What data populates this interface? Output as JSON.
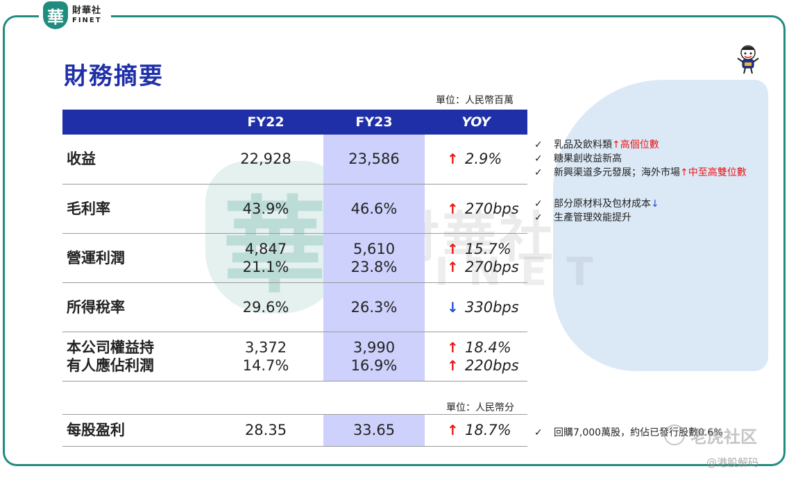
{
  "logo": {
    "glyph": "華",
    "cn": "財華社",
    "en": "FINET"
  },
  "title": "財務摘要",
  "unit_top": "單位：人民幣百萬",
  "unit_eps": "單位：人民幣分",
  "table": {
    "headers": [
      "",
      "FY22",
      "FY23",
      "YOY"
    ],
    "rows": [
      {
        "label": "收益",
        "fy22": "22,928",
        "fy23": "23,586",
        "yoy": [
          {
            "dir": "up",
            "arrow": "↑",
            "value": "2.9%"
          }
        ]
      },
      {
        "label": "毛利率",
        "fy22": "43.9%",
        "fy23": "46.6%",
        "yoy": [
          {
            "dir": "up",
            "arrow": "↑",
            "value": "270bps"
          }
        ]
      },
      {
        "label": "營運利潤",
        "fy22": [
          "4,847",
          "21.1%"
        ],
        "fy23": [
          "5,610",
          "23.8%"
        ],
        "yoy": [
          {
            "dir": "up",
            "arrow": "↑",
            "value": "15.7%"
          },
          {
            "dir": "up",
            "arrow": "↑",
            "value": "270bps"
          }
        ]
      },
      {
        "label": "所得稅率",
        "fy22": "29.6%",
        "fy23": "26.3%",
        "yoy": [
          {
            "dir": "down",
            "arrow": "↓",
            "value": "330bps"
          }
        ]
      },
      {
        "label": [
          "本公司權益持",
          "有人應佔利潤"
        ],
        "fy22": [
          "3,372",
          "14.7%"
        ],
        "fy23": [
          "3,990",
          "16.9%"
        ],
        "yoy": [
          {
            "dir": "up",
            "arrow": "↑",
            "value": "18.4%"
          },
          {
            "dir": "up",
            "arrow": "↑",
            "value": "220bps"
          }
        ]
      }
    ],
    "eps": {
      "label": "每股盈利",
      "fy22": "28.35",
      "fy23": "33.65",
      "yoy": {
        "dir": "up",
        "arrow": "↑",
        "value": "18.7%"
      }
    }
  },
  "notes": {
    "revenue": [
      {
        "text": "乳品及飲料類",
        "arrow": "↑",
        "highlight": "高個位數"
      },
      {
        "text": "糖果創收益新高",
        "arrow": "",
        "highlight": ""
      },
      {
        "text": "新興渠道多元發展；海外市場",
        "arrow": "↑",
        "highlight": "中至高雙位數"
      }
    ],
    "margin": [
      {
        "text": "部分原材料及包材成本",
        "arrow": "↓"
      },
      {
        "text": "生產管理效能提升",
        "arrow": ""
      }
    ],
    "eps": "回購7,000萬股，約佔已發行股數0.6%"
  },
  "tick": "✓",
  "watermarks": {
    "cn": "財華社",
    "en": "FINET",
    "tiger": "老虎社区",
    "hk": "@港股解码"
  },
  "colors": {
    "header_blue": "#1f2fa8",
    "highlight_col": "#cdd1fb",
    "frame_green": "#1f8c7d",
    "up_red": "#e11111",
    "down_blue": "#1e4fd6"
  }
}
